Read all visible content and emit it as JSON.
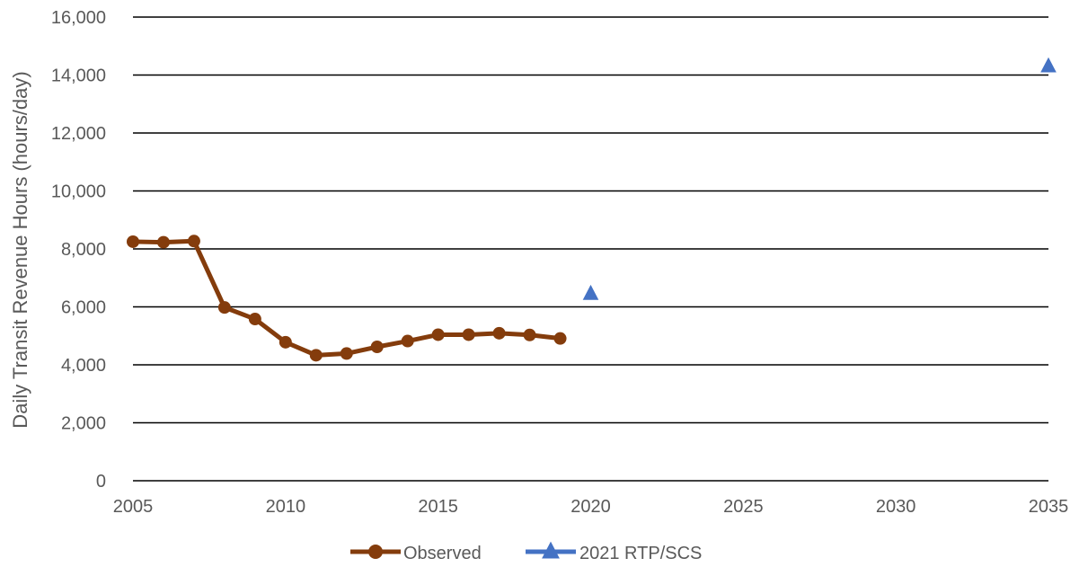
{
  "chart_data": {
    "type": "line",
    "title": "",
    "xlabel": "",
    "ylabel": "Daily Transit Revenue Hours (hours/day)",
    "xlim": [
      2005,
      2035
    ],
    "ylim": [
      0,
      16000
    ],
    "x_ticks": [
      2005,
      2010,
      2015,
      2020,
      2025,
      2030,
      2035
    ],
    "y_ticks": [
      0,
      2000,
      4000,
      6000,
      8000,
      10000,
      12000,
      14000,
      16000
    ],
    "grid": "horizontal",
    "legend_position": "bottom",
    "series": [
      {
        "name": "Observed",
        "color": "#843c0c",
        "marker": "circle",
        "x": [
          2005,
          2006,
          2007,
          2008,
          2009,
          2010,
          2011,
          2012,
          2013,
          2014,
          2015,
          2016,
          2017,
          2018,
          2019
        ],
        "y": [
          8250,
          8230,
          8270,
          5980,
          5580,
          4780,
          4330,
          4390,
          4620,
          4820,
          5040,
          5040,
          5090,
          5030,
          4910
        ]
      },
      {
        "name": "2021 RTP/SCS",
        "color": "#4472c4",
        "marker": "triangle",
        "x": [
          2020,
          2035
        ],
        "y": [
          6450,
          14300
        ]
      }
    ]
  }
}
